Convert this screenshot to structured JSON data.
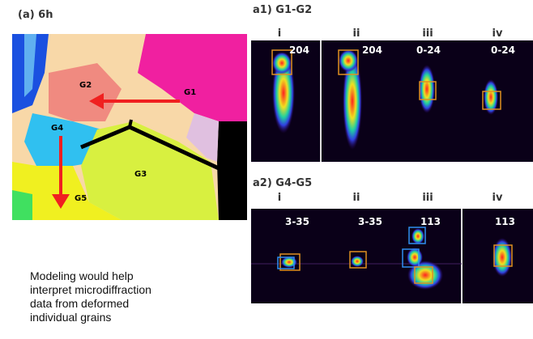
{
  "panel_a": {
    "title": "(a) 6h",
    "grains": [
      "G1",
      "G2",
      "G3",
      "G4",
      "G5"
    ]
  },
  "panel_a1": {
    "title": "a1) G1-G2",
    "columns": [
      "i",
      "ii",
      "iii",
      "iv"
    ],
    "reflections": [
      "204",
      "204",
      "0-24",
      "0-24"
    ]
  },
  "panel_a2": {
    "title": "a2) G4-G5",
    "columns": [
      "i",
      "ii",
      "iii",
      "iv"
    ],
    "reflections": [
      "3-35",
      "3-35",
      "113",
      "113"
    ]
  },
  "caption": "Modeling would help interpret microdiffraction data from deformed individual grains"
}
